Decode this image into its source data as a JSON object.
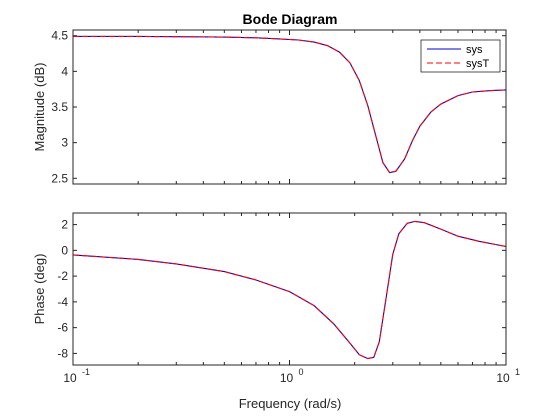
{
  "chart_data": {
    "type": "line",
    "title": "Bode Diagram",
    "xlabel": "Frequency (rad/s)",
    "x_scale": "log",
    "xlim": [
      0.1,
      10
    ],
    "x_tick_labels": [
      {
        "value": 0.1,
        "base": "10",
        "exp": "-1"
      },
      {
        "value": 1,
        "base": "10",
        "exp": "0"
      },
      {
        "value": 10,
        "base": "10",
        "exp": "1"
      }
    ],
    "legend": {
      "position": "top-right",
      "entries": [
        "sys",
        "sysT"
      ]
    },
    "colors": {
      "sys": "#0000cc",
      "sysT": "#ff0000"
    },
    "panels": [
      {
        "ylabel": "Magnitude (dB)",
        "ylim": [
          2.42,
          4.58
        ],
        "yticks": [
          2.5,
          3,
          3.5,
          4,
          4.5
        ],
        "ytick_labels": [
          "2.5",
          "3",
          "3.5",
          "4",
          "4.5"
        ],
        "series": [
          {
            "name": "sys",
            "x": [
              0.1,
              0.2,
              0.35,
              0.5,
              0.7,
              0.9,
              1.1,
              1.3,
              1.5,
              1.7,
              1.9,
              2.1,
              2.3,
              2.5,
              2.7,
              2.9,
              3.1,
              3.4,
              3.7,
              4.0,
              4.5,
              5.0,
              6.0,
              7.0,
              8.5,
              10.0
            ],
            "y": [
              4.49,
              4.49,
              4.485,
              4.48,
              4.47,
              4.455,
              4.44,
              4.41,
              4.36,
              4.27,
              4.12,
              3.87,
              3.52,
              3.1,
              2.72,
              2.58,
              2.6,
              2.77,
              3.03,
              3.23,
              3.43,
              3.54,
              3.66,
              3.71,
              3.73,
              3.74
            ]
          },
          {
            "name": "sysT",
            "x": [
              0.1,
              0.2,
              0.35,
              0.5,
              0.7,
              0.9,
              1.1,
              1.3,
              1.5,
              1.7,
              1.9,
              2.1,
              2.3,
              2.5,
              2.7,
              2.9,
              3.1,
              3.4,
              3.7,
              4.0,
              4.5,
              5.0,
              6.0,
              7.0,
              8.5,
              10.0
            ],
            "y": [
              4.49,
              4.49,
              4.485,
              4.48,
              4.47,
              4.455,
              4.44,
              4.41,
              4.36,
              4.27,
              4.12,
              3.87,
              3.52,
              3.1,
              2.72,
              2.58,
              2.6,
              2.77,
              3.03,
              3.23,
              3.43,
              3.54,
              3.66,
              3.71,
              3.73,
              3.74
            ]
          }
        ]
      },
      {
        "ylabel": "Phase (deg)",
        "ylim": [
          -8.9,
          2.9
        ],
        "yticks": [
          -8,
          -6,
          -4,
          -2,
          0,
          2
        ],
        "ytick_labels": [
          "-8",
          "-6",
          "-4",
          "-2",
          "0",
          "2"
        ],
        "series": [
          {
            "name": "sys",
            "x": [
              0.1,
              0.2,
              0.3,
              0.5,
              0.7,
              1.0,
              1.3,
              1.6,
              1.9,
              2.1,
              2.3,
              2.45,
              2.6,
              2.8,
              3.0,
              3.2,
              3.5,
              3.8,
              4.2,
              5.0,
              6.0,
              7.5,
              10.0
            ],
            "y": [
              -0.35,
              -0.7,
              -1.05,
              -1.65,
              -2.3,
              -3.2,
              -4.3,
              -5.7,
              -7.2,
              -8.1,
              -8.4,
              -8.3,
              -7.1,
              -3.6,
              -0.3,
              1.3,
              2.1,
              2.25,
              2.15,
              1.65,
              1.1,
              0.7,
              0.3
            ]
          },
          {
            "name": "sysT",
            "x": [
              0.1,
              0.2,
              0.3,
              0.5,
              0.7,
              1.0,
              1.3,
              1.6,
              1.9,
              2.1,
              2.3,
              2.45,
              2.6,
              2.8,
              3.0,
              3.2,
              3.5,
              3.8,
              4.2,
              5.0,
              6.0,
              7.5,
              10.0
            ],
            "y": [
              -0.35,
              -0.7,
              -1.05,
              -1.65,
              -2.3,
              -3.2,
              -4.3,
              -5.7,
              -7.2,
              -8.1,
              -8.4,
              -8.3,
              -7.1,
              -3.6,
              -0.3,
              1.3,
              2.1,
              2.25,
              2.15,
              1.65,
              1.1,
              0.7,
              0.3
            ]
          }
        ]
      }
    ]
  }
}
